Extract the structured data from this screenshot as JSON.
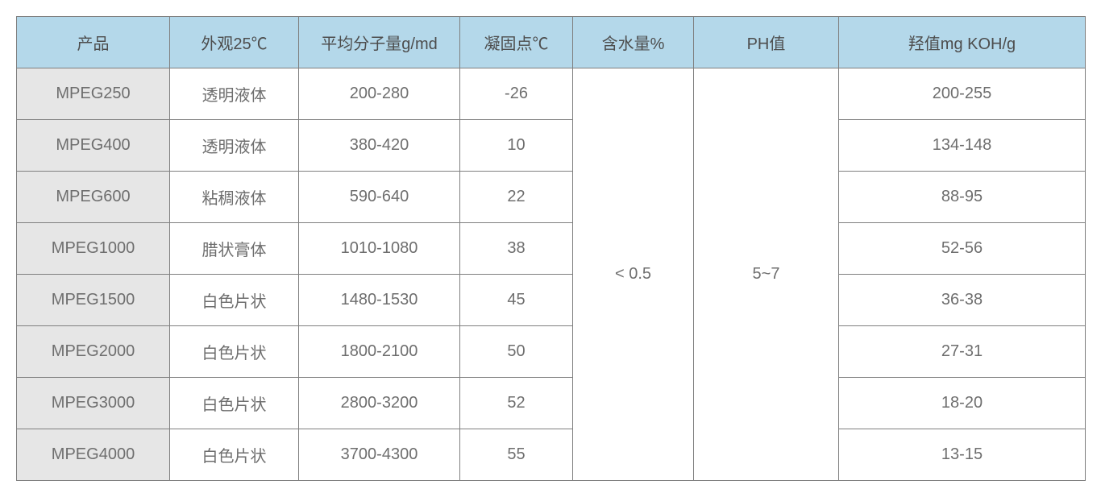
{
  "table": {
    "border_color": "#7f7f7f",
    "header_bg": "#b4d8ea",
    "header_color": "#4d4d4d",
    "product_col_bg": "#e6e6e6",
    "body_bg": "#ffffff",
    "cell_color": "#6e6e6e",
    "font_size": 20,
    "columns": [
      "产品",
      "外观25℃",
      "平均分子量g/md",
      "凝固点℃",
      "含水量%",
      "PH值",
      "羟值mg KOH/g"
    ],
    "rows": [
      {
        "product": "MPEG250",
        "appearance": "透明液体",
        "mw": "200-280",
        "freeze": "-26",
        "hydroxyl": "200-255"
      },
      {
        "product": "MPEG400",
        "appearance": "透明液体",
        "mw": "380-420",
        "freeze": "10",
        "hydroxyl": "134-148"
      },
      {
        "product": "MPEG600",
        "appearance": "粘稠液体",
        "mw": "590-640",
        "freeze": "22",
        "hydroxyl": "88-95"
      },
      {
        "product": "MPEG1000",
        "appearance": "腊状膏体",
        "mw": "1010-1080",
        "freeze": "38",
        "hydroxyl": "52-56"
      },
      {
        "product": "MPEG1500",
        "appearance": "白色片状",
        "mw": "1480-1530",
        "freeze": "45",
        "hydroxyl": "36-38"
      },
      {
        "product": "MPEG2000",
        "appearance": "白色片状",
        "mw": "1800-2100",
        "freeze": "50",
        "hydroxyl": "27-31"
      },
      {
        "product": "MPEG3000",
        "appearance": "白色片状",
        "mw": "2800-3200",
        "freeze": "52",
        "hydroxyl": "18-20"
      },
      {
        "product": "MPEG4000",
        "appearance": "白色片状",
        "mw": "3700-4300",
        "freeze": "55",
        "hydroxyl": "13-15"
      }
    ],
    "water_content": "< 0.5",
    "ph": "5~7"
  }
}
